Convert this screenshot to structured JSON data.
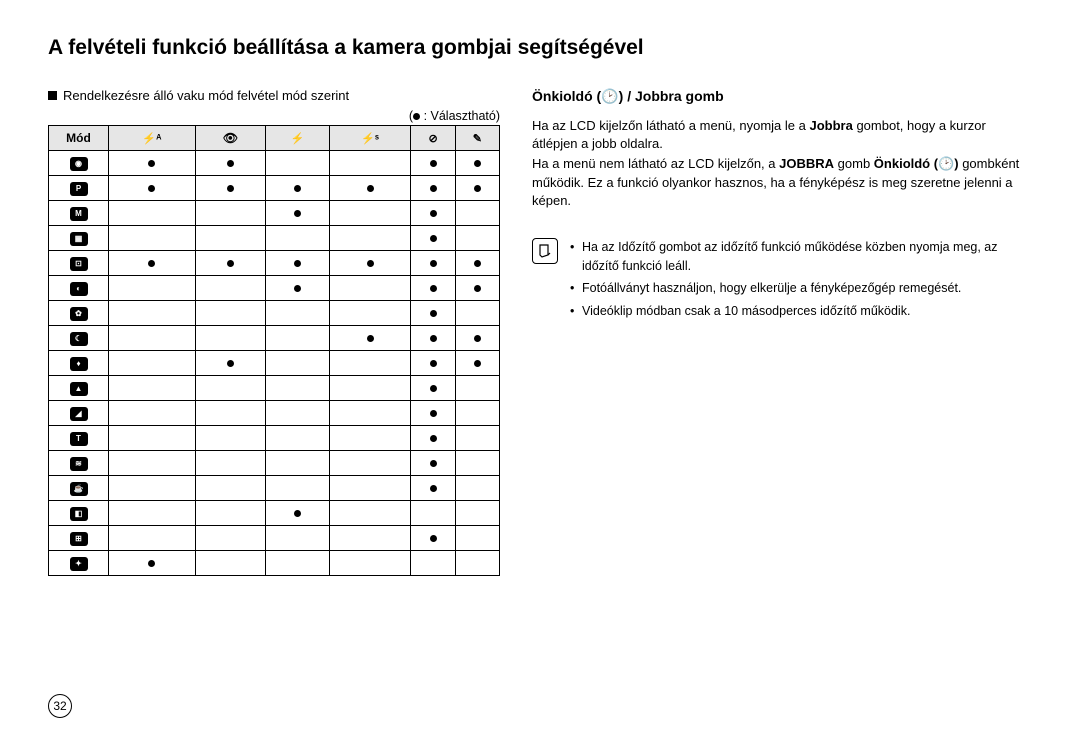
{
  "title": "A felvételi funkció beállítása a kamera gombjai segítségével",
  "leftSubtitle": "Rendelkezésre álló vaku mód felvétel mód szerint",
  "selectableLabel": ": Választható)",
  "table": {
    "headerMode": "Mód",
    "headerIcons": [
      "⚡ᴬ",
      "👁",
      "⚡",
      "⚡ˢ",
      "⊘",
      "✎"
    ],
    "rowIcons": [
      "◉",
      "P",
      "M",
      "▦",
      "⊡",
      "◐",
      "✿",
      "☾",
      "♦",
      "▲",
      "◢",
      "T",
      "≋",
      "☕",
      "◧",
      "⊞",
      "✦"
    ],
    "matrix": [
      [
        1,
        1,
        0,
        0,
        1,
        1
      ],
      [
        1,
        1,
        1,
        1,
        1,
        1
      ],
      [
        0,
        0,
        1,
        0,
        1,
        0
      ],
      [
        0,
        0,
        0,
        0,
        1,
        0
      ],
      [
        1,
        1,
        1,
        1,
        1,
        1
      ],
      [
        0,
        0,
        1,
        0,
        1,
        1
      ],
      [
        0,
        0,
        0,
        0,
        1,
        0
      ],
      [
        0,
        0,
        0,
        1,
        1,
        1
      ],
      [
        0,
        1,
        0,
        0,
        1,
        1
      ],
      [
        0,
        0,
        0,
        0,
        1,
        0
      ],
      [
        0,
        0,
        0,
        0,
        1,
        0
      ],
      [
        0,
        0,
        0,
        0,
        1,
        0
      ],
      [
        0,
        0,
        0,
        0,
        1,
        0
      ],
      [
        0,
        0,
        0,
        0,
        1,
        0
      ],
      [
        0,
        0,
        1,
        0,
        0,
        0
      ],
      [
        0,
        0,
        0,
        0,
        1,
        0
      ],
      [
        1,
        0,
        0,
        0,
        0,
        0
      ]
    ]
  },
  "right": {
    "heading": "Önkioldó (🕑) / Jobbra gomb",
    "p1a": "Ha az LCD kijelzőn látható a menü, nyomja le a ",
    "p1b": "Jobbra",
    "p1c": " gombot, hogy a kurzor átlépjen a jobb oldalra.",
    "p2a": "Ha a menü nem látható az LCD kijelzőn, a ",
    "p2b": "JOBBRA",
    "p2c": " gomb ",
    "p2d": "Önkioldó (🕑)",
    "p2e": " gombként működik. Ez a funkció olyankor hasznos, ha a fényképész is meg szeretne jelenni a képen.",
    "note1": "Ha az Időzítő gombot az időzítő funkció működése közben nyomja meg, az időzítő funkció leáll.",
    "note2": "Fotóállványt használjon, hogy elkerülje a fényképezőgép remegését.",
    "note3": "Videóklip módban csak a 10 másodperces időzítő működik."
  },
  "pageNumber": "32"
}
